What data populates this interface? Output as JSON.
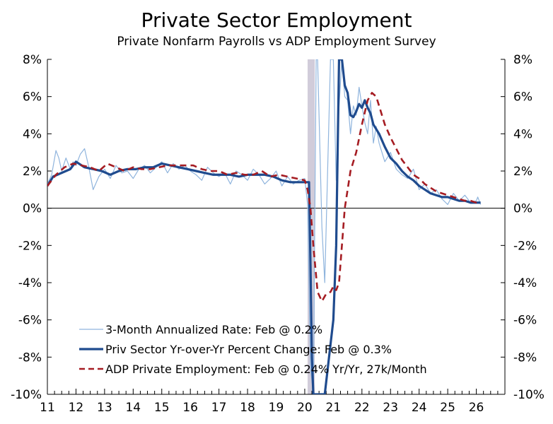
{
  "chart_data": {
    "type": "line",
    "title": "Private Sector Employment",
    "subtitle": "Private Nonfarm Payrolls vs ADP Employment Survey",
    "ylim": [
      -10,
      8
    ],
    "y_ticks": [
      "8%",
      "6%",
      "4%",
      "2%",
      "0%",
      "-2%",
      "-4%",
      "-6%",
      "-8%",
      "-10%"
    ],
    "xlim": [
      2011,
      2027
    ],
    "x_ticks": [
      "11",
      "12",
      "13",
      "14",
      "15",
      "16",
      "17",
      "18",
      "19",
      "20",
      "21",
      "22",
      "23",
      "24",
      "25",
      "26"
    ],
    "recession_shading": [
      2020.1,
      2020.35
    ],
    "zero_line": true,
    "legend_position": "bottom-left",
    "series": [
      {
        "name": "3-Month Annualized Rate: Feb @ 0.2%",
        "color": "#8fb4dd",
        "style": "thin",
        "x": [
          2011.0,
          2011.15,
          2011.3,
          2011.4,
          2011.5,
          2011.65,
          2011.8,
          2011.9,
          2012.0,
          2012.15,
          2012.3,
          2012.45,
          2012.6,
          2012.8,
          2013.0,
          2013.2,
          2013.4,
          2013.6,
          2013.8,
          2014.0,
          2014.2,
          2014.4,
          2014.6,
          2014.8,
          2015.0,
          2015.2,
          2015.4,
          2015.6,
          2015.8,
          2016.0,
          2016.2,
          2016.4,
          2016.6,
          2016.8,
          2017.0,
          2017.2,
          2017.4,
          2017.6,
          2017.8,
          2018.0,
          2018.2,
          2018.4,
          2018.6,
          2018.8,
          2019.0,
          2019.2,
          2019.4,
          2019.6,
          2019.8,
          2020.0,
          2020.1,
          2020.2,
          2020.3,
          2020.4,
          2020.45,
          2020.6,
          2020.7,
          2020.8,
          2020.9,
          2021.0,
          2021.1,
          2021.2,
          2021.3,
          2021.4,
          2021.5,
          2021.6,
          2021.7,
          2021.8,
          2021.9,
          2022.0,
          2022.1,
          2022.2,
          2022.3,
          2022.4,
          2022.5,
          2022.6,
          2022.8,
          2023.0,
          2023.2,
          2023.4,
          2023.6,
          2023.8,
          2024.0,
          2024.2,
          2024.4,
          2024.6,
          2024.8,
          2025.0,
          2025.2,
          2025.4,
          2025.6,
          2025.8,
          2026.0,
          2026.05,
          2026.15
        ],
        "values": [
          1.3,
          1.8,
          3.1,
          2.7,
          2.0,
          2.7,
          2.1,
          2.5,
          2.3,
          2.9,
          3.2,
          2.2,
          1.0,
          1.7,
          2.1,
          1.6,
          2.3,
          1.9,
          2.0,
          1.6,
          2.1,
          2.3,
          1.9,
          2.2,
          2.5,
          1.9,
          2.4,
          2.1,
          2.3,
          2.0,
          1.8,
          1.5,
          2.2,
          1.9,
          1.7,
          1.9,
          1.3,
          2.0,
          1.8,
          1.5,
          2.1,
          1.8,
          1.3,
          1.6,
          2.0,
          1.2,
          1.7,
          1.3,
          1.5,
          1.6,
          0.2,
          -8.5,
          -10,
          8,
          8,
          -1,
          -4,
          2,
          8,
          8,
          1.5,
          5.5,
          8,
          6.0,
          5.8,
          4.0,
          5.5,
          5.0,
          6.5,
          5.5,
          4.6,
          4.0,
          5.8,
          3.5,
          4.4,
          3.5,
          2.5,
          3.0,
          2.1,
          1.8,
          1.6,
          2.1,
          1.0,
          1.3,
          0.8,
          1.0,
          0.5,
          0.2,
          0.8,
          0.4,
          0.7,
          0.3,
          0.4,
          0.6,
          0.2
        ]
      },
      {
        "name": "Priv Sector Yr-over-Yr Percent Change: Feb @ 0.3%",
        "color": "#1f4b8e",
        "style": "thick",
        "x": [
          2011.0,
          2011.2,
          2011.5,
          2011.8,
          2012.0,
          2012.3,
          2012.6,
          2012.9,
          2013.2,
          2013.5,
          2013.8,
          2014.1,
          2014.4,
          2014.7,
          2015.0,
          2015.3,
          2015.6,
          2015.9,
          2016.2,
          2016.5,
          2016.8,
          2017.1,
          2017.4,
          2017.7,
          2018.0,
          2018.3,
          2018.6,
          2018.9,
          2019.2,
          2019.5,
          2019.8,
          2020.0,
          2020.15,
          2020.2,
          2020.25,
          2020.3,
          2020.5,
          2020.7,
          2021.0,
          2021.1,
          2021.15,
          2021.2,
          2021.3,
          2021.4,
          2021.5,
          2021.6,
          2021.7,
          2021.8,
          2021.9,
          2022.0,
          2022.1,
          2022.2,
          2022.3,
          2022.4,
          2022.6,
          2022.8,
          2023.0,
          2023.2,
          2023.4,
          2023.6,
          2023.8,
          2024.0,
          2024.2,
          2024.4,
          2024.6,
          2024.8,
          2025.0,
          2025.2,
          2025.4,
          2025.6,
          2025.8,
          2026.0,
          2026.15
        ],
        "values": [
          1.2,
          1.7,
          1.9,
          2.1,
          2.5,
          2.2,
          2.1,
          2.0,
          1.8,
          2.0,
          2.1,
          2.1,
          2.2,
          2.2,
          2.4,
          2.3,
          2.2,
          2.1,
          2.0,
          1.9,
          1.8,
          1.8,
          1.8,
          1.7,
          1.8,
          1.8,
          1.8,
          1.7,
          1.5,
          1.4,
          1.4,
          1.4,
          1.4,
          -3.0,
          -8.0,
          -10,
          -10,
          -10,
          -6.0,
          -2.0,
          3.0,
          8,
          8,
          6.6,
          6.2,
          5.0,
          4.9,
          5.2,
          5.6,
          5.4,
          5.8,
          5.4,
          5.1,
          4.5,
          4.0,
          3.3,
          2.7,
          2.4,
          2.0,
          1.7,
          1.5,
          1.2,
          1.0,
          0.8,
          0.7,
          0.6,
          0.6,
          0.5,
          0.4,
          0.4,
          0.3,
          0.3,
          0.3
        ]
      },
      {
        "name": "ADP Private Employment: Feb @ 0.24% Yr/Yr, 27k/Month",
        "color": "#a51c22",
        "style": "dashed",
        "x": [
          2011.0,
          2011.3,
          2011.6,
          2011.9,
          2012.2,
          2012.5,
          2012.8,
          2013.1,
          2013.4,
          2013.7,
          2014.0,
          2014.3,
          2014.6,
          2014.9,
          2015.2,
          2015.5,
          2015.8,
          2016.1,
          2016.4,
          2016.7,
          2017.0,
          2017.3,
          2017.6,
          2017.9,
          2018.2,
          2018.5,
          2018.8,
          2019.1,
          2019.4,
          2019.7,
          2020.0,
          2020.1,
          2020.2,
          2020.3,
          2020.45,
          2020.6,
          2020.75,
          2020.9,
          2021.0,
          2021.1,
          2021.2,
          2021.4,
          2021.6,
          2021.8,
          2022.0,
          2022.2,
          2022.35,
          2022.5,
          2022.6,
          2022.8,
          2023.0,
          2023.2,
          2023.4,
          2023.6,
          2023.8,
          2024.0,
          2024.2,
          2024.4,
          2024.6,
          2024.8,
          2025.0,
          2025.2,
          2025.4,
          2025.6,
          2025.8,
          2026.0,
          2026.15
        ],
        "values": [
          1.2,
          1.8,
          2.2,
          2.4,
          2.3,
          2.2,
          2.0,
          2.4,
          2.2,
          2.0,
          2.2,
          2.1,
          2.1,
          2.2,
          2.3,
          2.3,
          2.3,
          2.3,
          2.1,
          2.0,
          2.0,
          1.8,
          1.9,
          1.8,
          1.8,
          2.0,
          1.7,
          1.8,
          1.7,
          1.6,
          1.5,
          1.0,
          0.0,
          -2.0,
          -4.5,
          -5.0,
          -4.6,
          -4.5,
          -4.2,
          -4.4,
          -4.0,
          0.0,
          2.0,
          3.0,
          4.5,
          5.8,
          6.2,
          6.0,
          5.5,
          4.5,
          3.8,
          3.2,
          2.6,
          2.2,
          1.8,
          1.6,
          1.3,
          1.1,
          0.9,
          0.8,
          0.7,
          0.6,
          0.5,
          0.4,
          0.4,
          0.3,
          0.24
        ]
      }
    ]
  }
}
